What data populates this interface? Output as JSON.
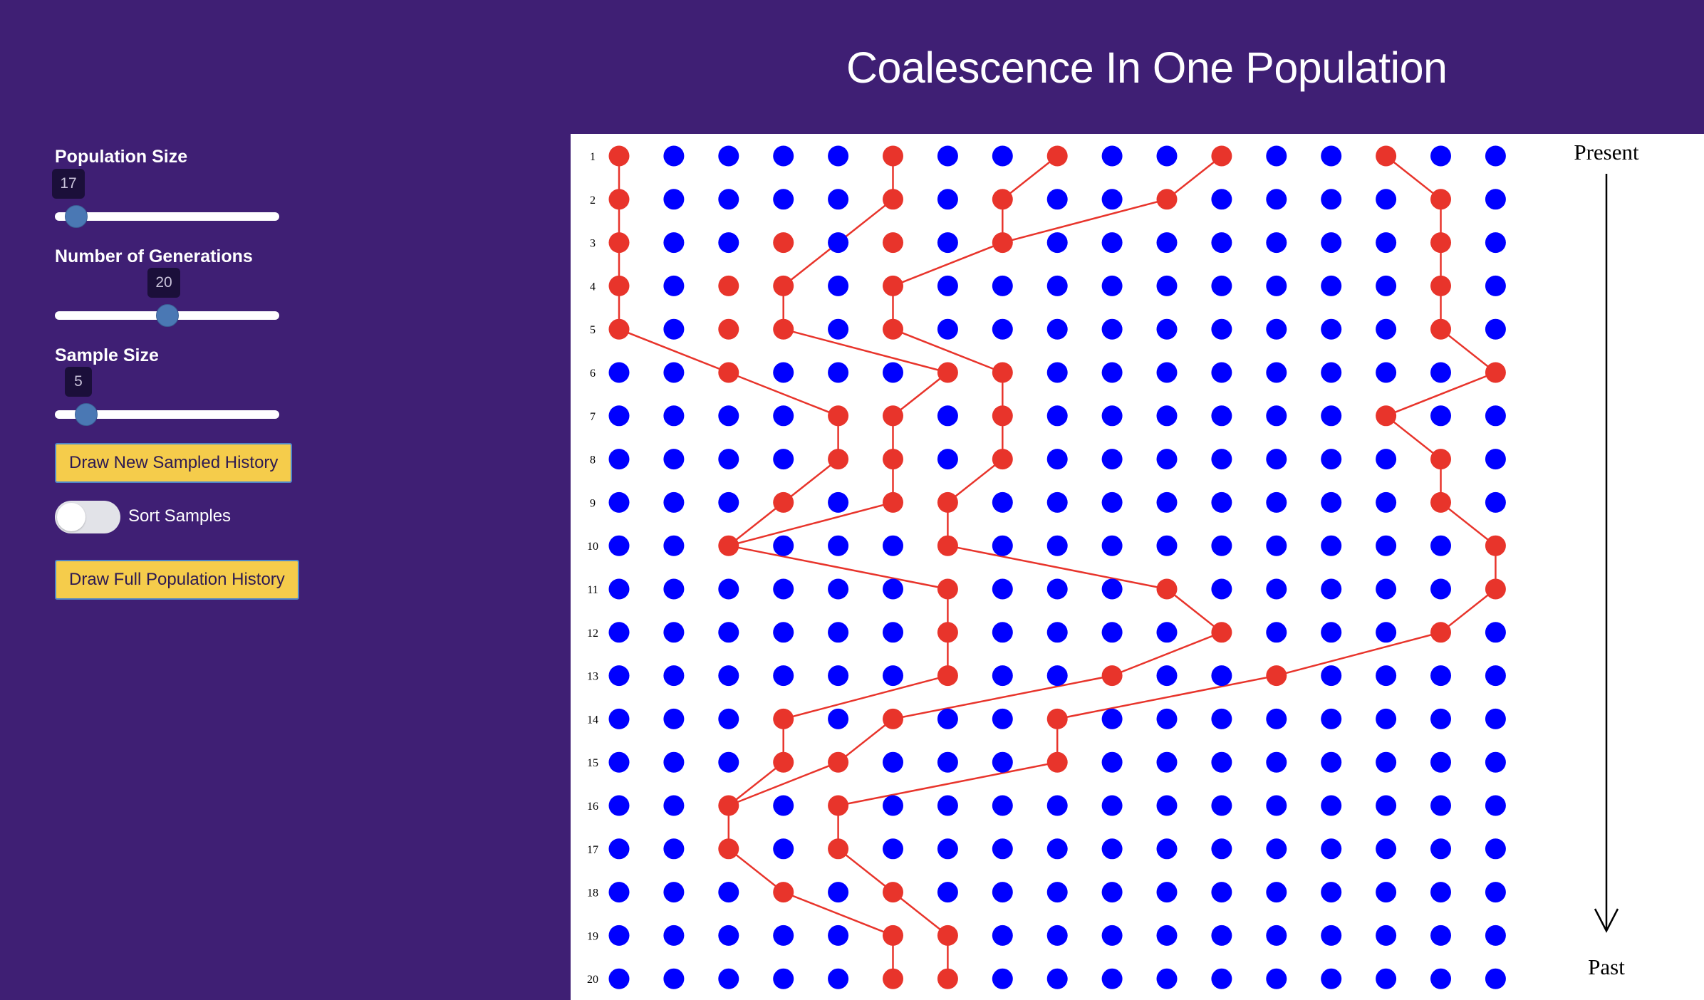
{
  "title": "Coalescence In One Population",
  "controls": {
    "population_size": {
      "label": "Population Size",
      "value": "17",
      "fraction": 0.05
    },
    "generations": {
      "label": "Number of Generations",
      "value": "20",
      "fraction": 0.5
    },
    "sample_size": {
      "label": "Sample Size",
      "value": "5",
      "fraction": 0.1
    },
    "draw_sampled_label": "Draw New Sampled History",
    "sort_samples_label": "Sort Samples",
    "sort_samples_on": false,
    "draw_full_label": "Draw Full Population History"
  },
  "chart_data": {
    "type": "scatter",
    "population_size": 17,
    "generations": 20,
    "row_labels": [
      "1",
      "2",
      "3",
      "4",
      "5",
      "6",
      "7",
      "8",
      "9",
      "10",
      "11",
      "12",
      "13",
      "14",
      "15",
      "16",
      "17",
      "18",
      "19",
      "20"
    ],
    "top_label": "Present",
    "bottom_label": "Past",
    "colors": {
      "individual": "#0000ff",
      "lineage": "#e8342b",
      "line": "#e8342b"
    },
    "lineage_nodes": [
      [
        0,
        5,
        8,
        11,
        14
      ],
      [
        0,
        5,
        7,
        10,
        15
      ],
      [
        0,
        3,
        5,
        7,
        15
      ],
      [
        0,
        2,
        3,
        5,
        15
      ],
      [
        0,
        2,
        3,
        5,
        15
      ],
      [
        2,
        6,
        7,
        16
      ],
      [
        4,
        5,
        7,
        14
      ],
      [
        4,
        5,
        7,
        15
      ],
      [
        3,
        5,
        6,
        15
      ],
      [
        2,
        6,
        16
      ],
      [
        6,
        10,
        16
      ],
      [
        6,
        11,
        15
      ],
      [
        6,
        9,
        12
      ],
      [
        3,
        5,
        8
      ],
      [
        3,
        4,
        8
      ],
      [
        2,
        4
      ],
      [
        2,
        4
      ],
      [
        3,
        5
      ],
      [
        5,
        6
      ],
      [
        5,
        6
      ]
    ],
    "edges": [
      [
        [
          0,
          0
        ],
        [
          1,
          0
        ]
      ],
      [
        [
          0,
          5
        ],
        [
          1,
          5
        ]
      ],
      [
        [
          0,
          8
        ],
        [
          1,
          7
        ]
      ],
      [
        [
          0,
          11
        ],
        [
          1,
          10
        ]
      ],
      [
        [
          0,
          14
        ],
        [
          1,
          15
        ]
      ],
      [
        [
          1,
          0
        ],
        [
          2,
          0
        ]
      ],
      [
        [
          1,
          5
        ],
        [
          2,
          4
        ]
      ],
      [
        [
          1,
          7
        ],
        [
          2,
          7
        ]
      ],
      [
        [
          1,
          10
        ],
        [
          2,
          7
        ]
      ],
      [
        [
          1,
          15
        ],
        [
          2,
          15
        ]
      ],
      [
        [
          2,
          0
        ],
        [
          3,
          0
        ]
      ],
      [
        [
          2,
          4
        ],
        [
          3,
          3
        ]
      ],
      [
        [
          2,
          7
        ],
        [
          3,
          5
        ]
      ],
      [
        [
          2,
          15
        ],
        [
          3,
          15
        ]
      ],
      [
        [
          3,
          0
        ],
        [
          4,
          0
        ]
      ],
      [
        [
          3,
          3
        ],
        [
          4,
          3
        ]
      ],
      [
        [
          3,
          5
        ],
        [
          4,
          5
        ]
      ],
      [
        [
          3,
          15
        ],
        [
          4,
          15
        ]
      ],
      [
        [
          4,
          0
        ],
        [
          5,
          2
        ]
      ],
      [
        [
          4,
          3
        ],
        [
          5,
          6
        ]
      ],
      [
        [
          4,
          5
        ],
        [
          5,
          7
        ]
      ],
      [
        [
          4,
          15
        ],
        [
          5,
          16
        ]
      ],
      [
        [
          5,
          2
        ],
        [
          6,
          4
        ]
      ],
      [
        [
          5,
          6
        ],
        [
          6,
          5
        ]
      ],
      [
        [
          5,
          7
        ],
        [
          6,
          7
        ]
      ],
      [
        [
          5,
          16
        ],
        [
          6,
          14
        ]
      ],
      [
        [
          6,
          4
        ],
        [
          7,
          4
        ]
      ],
      [
        [
          6,
          5
        ],
        [
          7,
          5
        ]
      ],
      [
        [
          6,
          7
        ],
        [
          7,
          7
        ]
      ],
      [
        [
          6,
          14
        ],
        [
          7,
          15
        ]
      ],
      [
        [
          7,
          4
        ],
        [
          8,
          3
        ]
      ],
      [
        [
          7,
          5
        ],
        [
          8,
          5
        ]
      ],
      [
        [
          7,
          7
        ],
        [
          8,
          6
        ]
      ],
      [
        [
          7,
          15
        ],
        [
          8,
          15
        ]
      ],
      [
        [
          8,
          3
        ],
        [
          9,
          2
        ]
      ],
      [
        [
          8,
          5
        ],
        [
          9,
          2
        ]
      ],
      [
        [
          8,
          6
        ],
        [
          9,
          6
        ]
      ],
      [
        [
          8,
          15
        ],
        [
          9,
          16
        ]
      ],
      [
        [
          9,
          2
        ],
        [
          10,
          6
        ]
      ],
      [
        [
          9,
          6
        ],
        [
          10,
          10
        ]
      ],
      [
        [
          9,
          16
        ],
        [
          10,
          16
        ]
      ],
      [
        [
          10,
          6
        ],
        [
          11,
          6
        ]
      ],
      [
        [
          10,
          10
        ],
        [
          11,
          11
        ]
      ],
      [
        [
          10,
          16
        ],
        [
          11,
          15
        ]
      ],
      [
        [
          11,
          6
        ],
        [
          12,
          6
        ]
      ],
      [
        [
          11,
          11
        ],
        [
          12,
          9
        ]
      ],
      [
        [
          11,
          15
        ],
        [
          12,
          12
        ]
      ],
      [
        [
          12,
          6
        ],
        [
          13,
          3
        ]
      ],
      [
        [
          12,
          9
        ],
        [
          13,
          5
        ]
      ],
      [
        [
          12,
          12
        ],
        [
          13,
          8
        ]
      ],
      [
        [
          13,
          3
        ],
        [
          14,
          3
        ]
      ],
      [
        [
          13,
          5
        ],
        [
          14,
          4
        ]
      ],
      [
        [
          13,
          8
        ],
        [
          14,
          8
        ]
      ],
      [
        [
          14,
          3
        ],
        [
          15,
          2
        ]
      ],
      [
        [
          14,
          4
        ],
        [
          15,
          2
        ]
      ],
      [
        [
          14,
          8
        ],
        [
          15,
          4
        ]
      ],
      [
        [
          15,
          2
        ],
        [
          16,
          2
        ]
      ],
      [
        [
          15,
          4
        ],
        [
          16,
          4
        ]
      ],
      [
        [
          16,
          2
        ],
        [
          17,
          3
        ]
      ],
      [
        [
          16,
          4
        ],
        [
          17,
          5
        ]
      ],
      [
        [
          17,
          3
        ],
        [
          18,
          5
        ]
      ],
      [
        [
          17,
          5
        ],
        [
          18,
          6
        ]
      ],
      [
        [
          18,
          5
        ],
        [
          19,
          5
        ]
      ],
      [
        [
          18,
          6
        ],
        [
          19,
          6
        ]
      ]
    ]
  }
}
